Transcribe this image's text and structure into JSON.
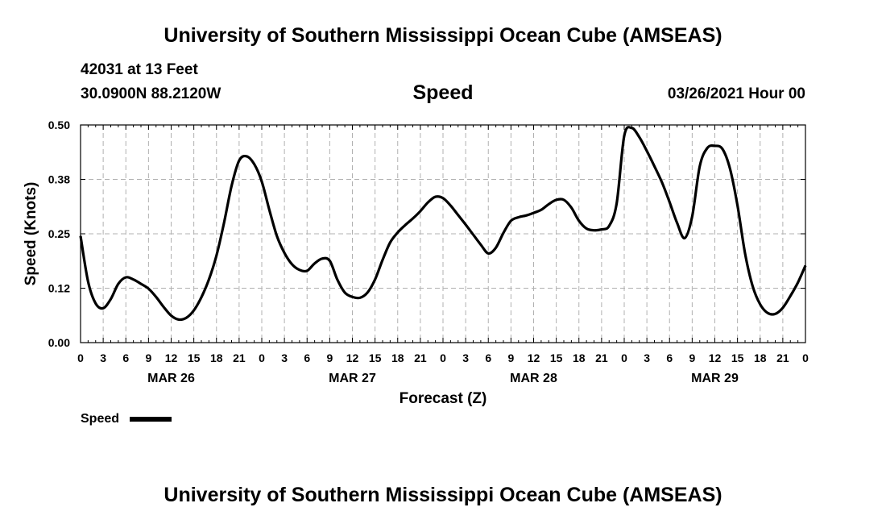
{
  "header": {
    "title": "University of Southern Mississippi Ocean Cube (AMSEAS)",
    "station": "42031 at 13 Feet",
    "coords": "30.0900N  88.2120W",
    "plot_title": "Speed",
    "date": "03/26/2021 Hour 00"
  },
  "footer": {
    "title": "University of Southern Mississippi Ocean Cube (AMSEAS)"
  },
  "legend": {
    "label": "Speed"
  },
  "colors": {
    "line": "#000000",
    "grid": "#b0b0b0"
  },
  "chart_data": {
    "type": "line",
    "title": "Speed",
    "xlabel": "Forecast (Z)",
    "ylabel": "Speed (Knots)",
    "ylim": [
      0,
      0.5
    ],
    "xlim": [
      0,
      96
    ],
    "x_unit": "hours since 03/26/2021 00Z",
    "grid": true,
    "y_ticks": [
      {
        "value": 0.0,
        "label": "0.00"
      },
      {
        "value": 0.125,
        "label": "0.12"
      },
      {
        "value": 0.25,
        "label": "0.25"
      },
      {
        "value": 0.375,
        "label": "0.38"
      },
      {
        "value": 0.5,
        "label": "0.50"
      }
    ],
    "x_tick_labels": [
      "0",
      "3",
      "6",
      "9",
      "12",
      "15",
      "18",
      "21",
      "0",
      "3",
      "6",
      "9",
      "12",
      "15",
      "18",
      "21",
      "0",
      "3",
      "6",
      "9",
      "12",
      "15",
      "18",
      "21",
      "0",
      "3",
      "6",
      "9",
      "12",
      "15",
      "18",
      "21",
      "0"
    ],
    "day_labels": [
      {
        "hour": 12,
        "label": "MAR 26"
      },
      {
        "hour": 36,
        "label": "MAR 27"
      },
      {
        "hour": 60,
        "label": "MAR 28"
      },
      {
        "hour": 84,
        "label": "MAR 29"
      }
    ],
    "legend_position": "bottom-left",
    "series": [
      {
        "name": "Speed",
        "x": [
          0,
          1,
          2,
          3,
          4,
          5,
          6,
          7,
          8,
          9,
          10,
          11,
          12,
          13,
          14,
          15,
          16,
          17,
          18,
          19,
          20,
          21,
          22,
          23,
          24,
          25,
          26,
          27,
          28,
          29,
          30,
          31,
          32,
          33,
          34,
          35,
          36,
          37,
          38,
          39,
          40,
          41,
          42,
          43,
          44,
          45,
          46,
          47,
          48,
          49,
          50,
          51,
          52,
          53,
          54,
          55,
          56,
          57,
          58,
          59,
          60,
          61,
          62,
          63,
          64,
          65,
          66,
          67,
          68,
          69,
          70,
          71,
          72,
          73,
          74,
          75,
          76,
          77,
          78,
          79,
          80,
          81,
          82,
          83,
          84,
          85,
          86,
          87,
          88,
          89,
          90,
          91,
          92,
          93,
          94,
          95,
          96
        ],
        "values": [
          0.245,
          0.14,
          0.09,
          0.079,
          0.1,
          0.135,
          0.15,
          0.145,
          0.135,
          0.124,
          0.105,
          0.082,
          0.062,
          0.053,
          0.057,
          0.074,
          0.104,
          0.145,
          0.2,
          0.275,
          0.36,
          0.418,
          0.428,
          0.41,
          0.37,
          0.305,
          0.245,
          0.206,
          0.18,
          0.167,
          0.165,
          0.182,
          0.193,
          0.188,
          0.145,
          0.115,
          0.105,
          0.103,
          0.115,
          0.145,
          0.19,
          0.23,
          0.253,
          0.27,
          0.285,
          0.302,
          0.322,
          0.335,
          0.332,
          0.315,
          0.293,
          0.271,
          0.248,
          0.225,
          0.205,
          0.218,
          0.252,
          0.28,
          0.288,
          0.292,
          0.298,
          0.305,
          0.318,
          0.328,
          0.328,
          0.31,
          0.28,
          0.262,
          0.258,
          0.26,
          0.268,
          0.32,
          0.475,
          0.493,
          0.472,
          0.44,
          0.405,
          0.368,
          0.323,
          0.275,
          0.24,
          0.29,
          0.405,
          0.447,
          0.452,
          0.445,
          0.4,
          0.315,
          0.205,
          0.13,
          0.088,
          0.068,
          0.066,
          0.08,
          0.107,
          0.138,
          0.177
        ]
      }
    ]
  }
}
